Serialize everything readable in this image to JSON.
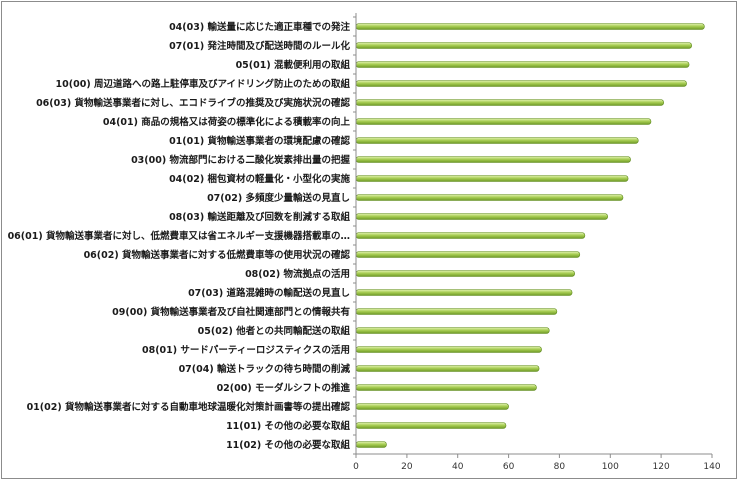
{
  "chart_data": {
    "type": "bar",
    "orientation": "horizontal",
    "categories": [
      "04(03) 輸送量に応じた適正車種での発注",
      "07(01) 発注時間及び配送時間のルール化",
      "05(01) 混載便利用の取組",
      "10(00) 周辺道路への路上駐停車及びアイドリング防止のための取組",
      "06(03) 貨物輸送事業者に対し、エコドライブの推奨及び実施状況の確認",
      "04(01) 商品の規格又は荷姿の標準化による積載率の向上",
      "01(01) 貨物輸送事業者の環境配慮の確認",
      "03(00) 物流部門における二酸化炭素排出量の把握",
      "04(02) 梱包資材の軽量化・小型化の実施",
      "07(02) 多頻度少量輸送の見直し",
      "08(03) 輸送距離及び回数を削減する取組",
      "06(01) 貨物輸送事業者に対し、低燃費車又は省エネルギー支援機器搭載車の…",
      "06(02) 貨物輸送事業者に対する低燃費車等の使用状況の確認",
      "08(02) 物流拠点の活用",
      "07(03) 道路混雑時の輸配送の見直し",
      "09(00) 貨物輸送事業者及び自社関連部門との情報共有",
      "05(02) 他者との共同輸配送の取組",
      "08(01) サードパーティーロジスティクスの活用",
      "07(04) 輸送トラックの待ち時間の削減",
      "02(00) モーダルシフトの推進",
      "01(02) 貨物輸送事業者に対する自動車地球温暖化対策計画書等の提出確認",
      "11(01) その他の必要な取組",
      "11(02) その他の必要な取組"
    ],
    "values": [
      137,
      132,
      131,
      130,
      121,
      116,
      111,
      108,
      107,
      105,
      99,
      90,
      88,
      86,
      85,
      79,
      76,
      73,
      72,
      71,
      60,
      59,
      12
    ],
    "xlim": [
      0,
      140
    ],
    "xticks": [
      0,
      20,
      40,
      60,
      80,
      100,
      120,
      140
    ],
    "grid": false,
    "legend": "none",
    "colors": {
      "bar_light": "#d8ec9e",
      "bar_mid": "#9cc44a",
      "bar_dark": "#5f8a1e",
      "axis": "#8c8c8c"
    }
  }
}
